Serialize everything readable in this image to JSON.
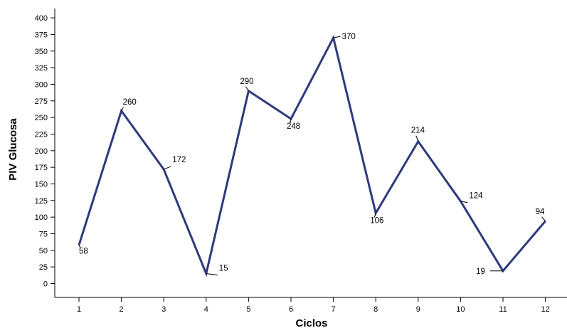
{
  "chart_data": {
    "type": "line",
    "title": "",
    "xlabel": "Ciclos",
    "ylabel": "PIV Glucosa",
    "categories": [
      "1",
      "2",
      "3",
      "4",
      "5",
      "6",
      "7",
      "8",
      "9",
      "10",
      "11",
      "12"
    ],
    "values": [
      58,
      260,
      172,
      15,
      290,
      248,
      370,
      106,
      214,
      124,
      19,
      94
    ],
    "ylim": [
      0,
      400
    ],
    "yticks": [
      "0",
      "25",
      "50",
      "75",
      "100",
      "125",
      "150",
      "175",
      "200",
      "225",
      "250",
      "275",
      "300",
      "325",
      "350",
      "375",
      "400"
    ],
    "data_labels": [
      "58",
      "260",
      "172",
      "15",
      "290",
      "248",
      "370",
      "106",
      "214",
      "124",
      "19",
      "94"
    ],
    "grid": false,
    "line_color": "#2e3a7c"
  }
}
